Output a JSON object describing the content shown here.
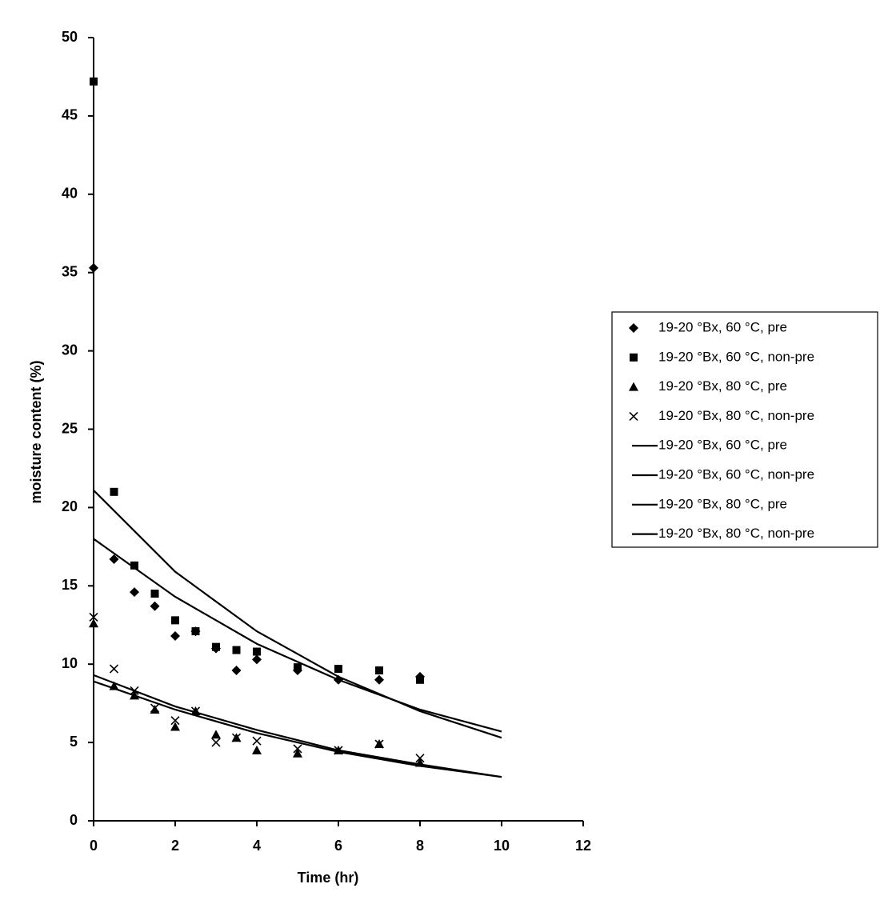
{
  "chart_data": {
    "type": "scatter",
    "x_label": "Time (hr)",
    "y_label": "moisture content (%)",
    "xlim": [
      0,
      12
    ],
    "ylim": [
      0,
      50
    ],
    "xticks": [
      0,
      2,
      4,
      6,
      8,
      10,
      12
    ],
    "yticks": [
      0,
      5,
      10,
      15,
      20,
      25,
      30,
      35,
      40,
      45,
      50
    ],
    "grid": false,
    "legend": "right",
    "series": [
      {
        "name": "19-20 °Bx, 60 °C, pre",
        "kind": "scatter",
        "marker": "diamond",
        "color": "#000000",
        "x": [
          0,
          0.5,
          1,
          1.5,
          2,
          2.5,
          3,
          3.5,
          4,
          5,
          6,
          7,
          8
        ],
        "values": [
          35.3,
          16.7,
          14.6,
          13.7,
          11.8,
          12.1,
          11.0,
          9.6,
          10.3,
          9.6,
          9.0,
          9.0,
          9.2
        ]
      },
      {
        "name": "19-20 °Bx, 60 °C, non-pre",
        "kind": "scatter",
        "marker": "square",
        "color": "#000000",
        "x": [
          0,
          0.5,
          1,
          1.5,
          2,
          2.5,
          3,
          3.5,
          4,
          5,
          6,
          7,
          8
        ],
        "values": [
          47.2,
          21.0,
          16.3,
          14.5,
          12.8,
          12.1,
          11.1,
          10.9,
          10.8,
          9.8,
          9.7,
          9.6,
          9.0
        ]
      },
      {
        "name": "19-20 °Bx, 80 °C, pre",
        "kind": "scatter",
        "marker": "triangle",
        "color": "#000000",
        "x": [
          0,
          0.5,
          1,
          1.5,
          2,
          2.5,
          3,
          3.5,
          4,
          5,
          6,
          7,
          8
        ],
        "values": [
          12.6,
          8.6,
          8.0,
          7.1,
          6.0,
          7.0,
          5.5,
          5.3,
          4.5,
          4.3,
          4.5,
          4.9,
          3.7
        ]
      },
      {
        "name": "19-20 °Bx, 80 °C, non-pre",
        "kind": "scatter",
        "marker": "x",
        "color": "#000000",
        "x": [
          0,
          0.5,
          1,
          1.5,
          2,
          2.5,
          3,
          3.5,
          4,
          5,
          6,
          7,
          8
        ],
        "values": [
          13.0,
          9.7,
          8.3,
          7.2,
          6.4,
          7.0,
          5.0,
          5.3,
          5.1,
          4.6,
          4.5,
          4.9,
          4.0
        ]
      },
      {
        "name": "19-20 °Bx, 60 °C, pre",
        "kind": "line",
        "color": "#000000",
        "x": [
          0,
          2,
          4,
          6,
          8,
          10
        ],
        "values": [
          18.0,
          14.3,
          11.3,
          9.0,
          7.1,
          5.7
        ]
      },
      {
        "name": "19-20 °Bx, 60 °C, non-pre",
        "kind": "line",
        "color": "#000000",
        "x": [
          0,
          2,
          4,
          6,
          8,
          10
        ],
        "values": [
          21.1,
          15.9,
          12.1,
          9.2,
          7.0,
          5.3
        ]
      },
      {
        "name": "19-20 °Bx, 80 °C, pre",
        "kind": "line",
        "color": "#000000",
        "x": [
          0,
          2,
          4,
          6,
          8,
          10
        ],
        "values": [
          8.9,
          7.1,
          5.6,
          4.4,
          3.5,
          2.8
        ]
      },
      {
        "name": "19-20 °Bx, 80 °C, non-pre",
        "kind": "line",
        "color": "#000000",
        "x": [
          0,
          2,
          4,
          6,
          8,
          10
        ],
        "values": [
          9.3,
          7.3,
          5.8,
          4.5,
          3.6,
          2.8
        ]
      }
    ]
  }
}
